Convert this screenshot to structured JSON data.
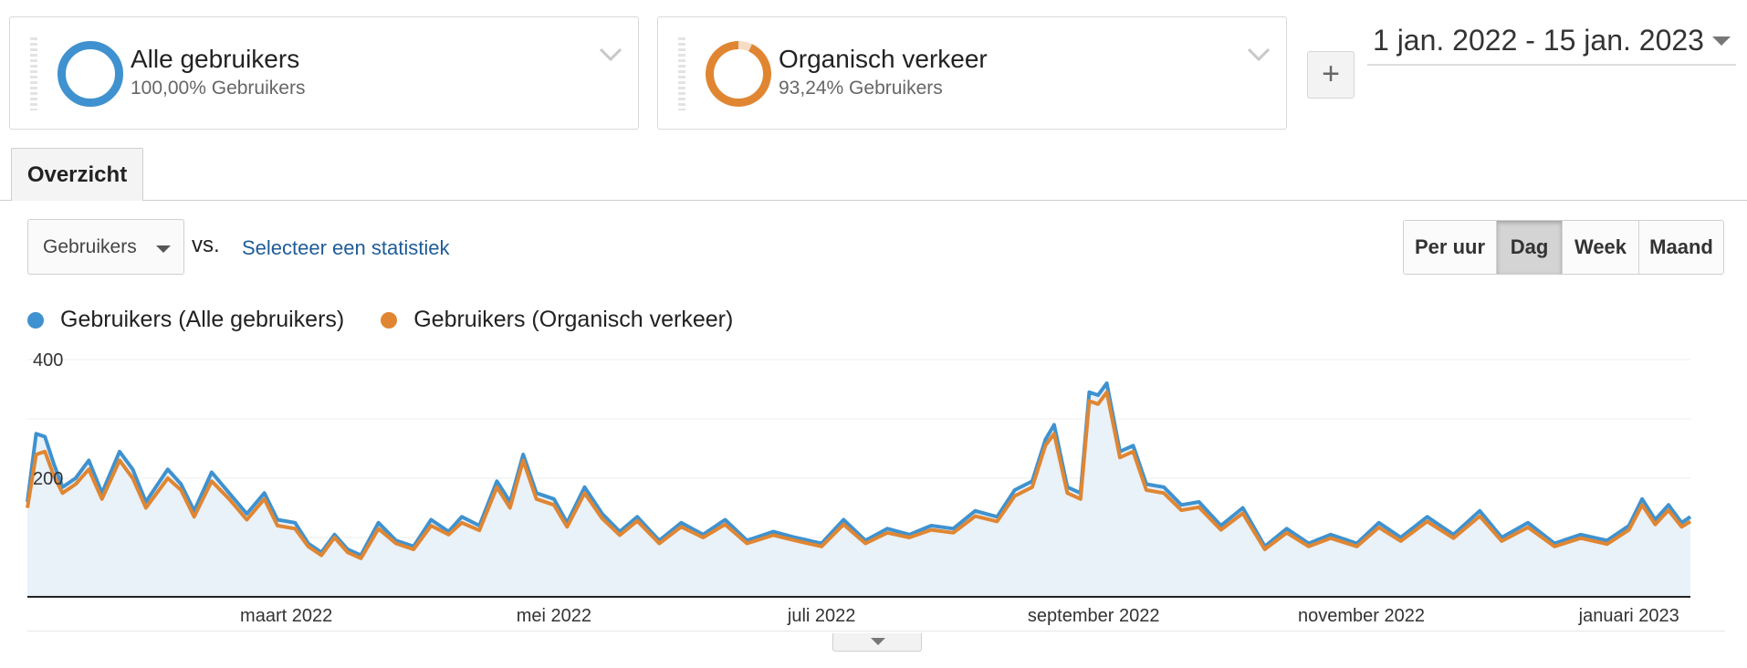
{
  "segments": [
    {
      "title": "Alle gebruikers",
      "subtitle": "100,00% Gebruikers",
      "color": "#3f92cf"
    },
    {
      "title": "Organisch verkeer",
      "subtitle": "93,24% Gebruikers",
      "color": "#e08632"
    }
  ],
  "add_segment_label": "+",
  "date_range": "1 jan. 2022 - 15 jan. 2023",
  "tabs": [
    {
      "label": "Overzicht"
    }
  ],
  "metric_selector": {
    "label": "Gebruikers",
    "vs_label": "vs.",
    "select_stat_label": "Selecteer een statistiek"
  },
  "period_buttons": [
    {
      "label": "Per uur",
      "active": false
    },
    {
      "label": "Dag",
      "active": true
    },
    {
      "label": "Week",
      "active": false
    },
    {
      "label": "Maand",
      "active": false
    }
  ],
  "chart_data": {
    "type": "line",
    "x_range": [
      "2022-01-01",
      "2023-01-15"
    ],
    "ylim": [
      0,
      400
    ],
    "yticks": [
      {
        "value": 400,
        "label": "400"
      },
      {
        "value": 200,
        "label": "200"
      }
    ],
    "xticks": [
      {
        "date": "2022-03-01",
        "label": "maart 2022"
      },
      {
        "date": "2022-05-01",
        "label": "mei 2022"
      },
      {
        "date": "2022-07-01",
        "label": "juli 2022"
      },
      {
        "date": "2022-09-01",
        "label": "september 2022"
      },
      {
        "date": "2022-11-01",
        "label": "november 2022"
      },
      {
        "date": "2023-01-01",
        "label": "januari 2023"
      }
    ],
    "grid": true,
    "legend_position": "top-left",
    "series": [
      {
        "name": "Gebruikers (Alle gebruikers)",
        "color": "#3f92cf",
        "fill": true,
        "points": [
          [
            "2022-01-01",
            160
          ],
          [
            "2022-01-03",
            275
          ],
          [
            "2022-01-05",
            270
          ],
          [
            "2022-01-07",
            225
          ],
          [
            "2022-01-09",
            185
          ],
          [
            "2022-01-12",
            200
          ],
          [
            "2022-01-15",
            230
          ],
          [
            "2022-01-18",
            175
          ],
          [
            "2022-01-22",
            245
          ],
          [
            "2022-01-25",
            215
          ],
          [
            "2022-01-28",
            160
          ],
          [
            "2022-02-02",
            215
          ],
          [
            "2022-02-05",
            190
          ],
          [
            "2022-02-08",
            145
          ],
          [
            "2022-02-12",
            210
          ],
          [
            "2022-02-16",
            175
          ],
          [
            "2022-02-20",
            140
          ],
          [
            "2022-02-24",
            175
          ],
          [
            "2022-02-27",
            130
          ],
          [
            "2022-03-03",
            125
          ],
          [
            "2022-03-06",
            90
          ],
          [
            "2022-03-09",
            75
          ],
          [
            "2022-03-12",
            105
          ],
          [
            "2022-03-15",
            80
          ],
          [
            "2022-03-18",
            70
          ],
          [
            "2022-03-22",
            125
          ],
          [
            "2022-03-26",
            95
          ],
          [
            "2022-03-30",
            85
          ],
          [
            "2022-04-03",
            130
          ],
          [
            "2022-04-07",
            110
          ],
          [
            "2022-04-10",
            135
          ],
          [
            "2022-04-14",
            120
          ],
          [
            "2022-04-18",
            195
          ],
          [
            "2022-04-21",
            160
          ],
          [
            "2022-04-24",
            240
          ],
          [
            "2022-04-27",
            175
          ],
          [
            "2022-05-01",
            165
          ],
          [
            "2022-05-04",
            125
          ],
          [
            "2022-05-08",
            185
          ],
          [
            "2022-05-12",
            140
          ],
          [
            "2022-05-16",
            110
          ],
          [
            "2022-05-20",
            135
          ],
          [
            "2022-05-25",
            95
          ],
          [
            "2022-05-30",
            125
          ],
          [
            "2022-06-04",
            105
          ],
          [
            "2022-06-09",
            130
          ],
          [
            "2022-06-14",
            95
          ],
          [
            "2022-06-20",
            110
          ],
          [
            "2022-06-25",
            100
          ],
          [
            "2022-07-01",
            90
          ],
          [
            "2022-07-06",
            130
          ],
          [
            "2022-07-11",
            95
          ],
          [
            "2022-07-16",
            115
          ],
          [
            "2022-07-21",
            105
          ],
          [
            "2022-07-26",
            120
          ],
          [
            "2022-07-31",
            115
          ],
          [
            "2022-08-05",
            145
          ],
          [
            "2022-08-10",
            135
          ],
          [
            "2022-08-14",
            180
          ],
          [
            "2022-08-18",
            195
          ],
          [
            "2022-08-21",
            265
          ],
          [
            "2022-08-23",
            290
          ],
          [
            "2022-08-26",
            185
          ],
          [
            "2022-08-29",
            175
          ],
          [
            "2022-08-31",
            345
          ],
          [
            "2022-09-02",
            340
          ],
          [
            "2022-09-04",
            360
          ],
          [
            "2022-09-07",
            245
          ],
          [
            "2022-09-10",
            255
          ],
          [
            "2022-09-13",
            190
          ],
          [
            "2022-09-17",
            185
          ],
          [
            "2022-09-21",
            155
          ],
          [
            "2022-09-25",
            160
          ],
          [
            "2022-09-30",
            120
          ],
          [
            "2022-10-05",
            150
          ],
          [
            "2022-10-10",
            85
          ],
          [
            "2022-10-15",
            115
          ],
          [
            "2022-10-20",
            90
          ],
          [
            "2022-10-25",
            105
          ],
          [
            "2022-10-31",
            90
          ],
          [
            "2022-11-05",
            125
          ],
          [
            "2022-11-10",
            100
          ],
          [
            "2022-11-16",
            135
          ],
          [
            "2022-11-22",
            105
          ],
          [
            "2022-11-28",
            145
          ],
          [
            "2022-12-03",
            100
          ],
          [
            "2022-12-09",
            125
          ],
          [
            "2022-12-15",
            90
          ],
          [
            "2022-12-21",
            105
          ],
          [
            "2022-12-27",
            95
          ],
          [
            "2023-01-01",
            120
          ],
          [
            "2023-01-04",
            165
          ],
          [
            "2023-01-07",
            130
          ],
          [
            "2023-01-10",
            155
          ],
          [
            "2023-01-13",
            125
          ],
          [
            "2023-01-15",
            135
          ]
        ]
      },
      {
        "name": "Gebruikers (Organisch verkeer)",
        "color": "#e08632",
        "fill": false,
        "points": [
          [
            "2022-01-01",
            150
          ],
          [
            "2022-01-03",
            240
          ],
          [
            "2022-01-05",
            245
          ],
          [
            "2022-01-07",
            205
          ],
          [
            "2022-01-09",
            175
          ],
          [
            "2022-01-12",
            190
          ],
          [
            "2022-01-15",
            215
          ],
          [
            "2022-01-18",
            165
          ],
          [
            "2022-01-22",
            230
          ],
          [
            "2022-01-25",
            200
          ],
          [
            "2022-01-28",
            150
          ],
          [
            "2022-02-02",
            200
          ],
          [
            "2022-02-05",
            180
          ],
          [
            "2022-02-08",
            135
          ],
          [
            "2022-02-12",
            195
          ],
          [
            "2022-02-16",
            165
          ],
          [
            "2022-02-20",
            130
          ],
          [
            "2022-02-24",
            165
          ],
          [
            "2022-02-27",
            120
          ],
          [
            "2022-03-03",
            115
          ],
          [
            "2022-03-06",
            85
          ],
          [
            "2022-03-09",
            70
          ],
          [
            "2022-03-12",
            100
          ],
          [
            "2022-03-15",
            75
          ],
          [
            "2022-03-18",
            65
          ],
          [
            "2022-03-22",
            115
          ],
          [
            "2022-03-26",
            90
          ],
          [
            "2022-03-30",
            80
          ],
          [
            "2022-04-03",
            120
          ],
          [
            "2022-04-07",
            105
          ],
          [
            "2022-04-10",
            125
          ],
          [
            "2022-04-14",
            112
          ],
          [
            "2022-04-18",
            185
          ],
          [
            "2022-04-21",
            150
          ],
          [
            "2022-04-24",
            230
          ],
          [
            "2022-04-27",
            165
          ],
          [
            "2022-05-01",
            155
          ],
          [
            "2022-05-04",
            118
          ],
          [
            "2022-05-08",
            175
          ],
          [
            "2022-05-12",
            132
          ],
          [
            "2022-05-16",
            104
          ],
          [
            "2022-05-20",
            128
          ],
          [
            "2022-05-25",
            90
          ],
          [
            "2022-05-30",
            118
          ],
          [
            "2022-06-04",
            100
          ],
          [
            "2022-06-09",
            122
          ],
          [
            "2022-06-14",
            90
          ],
          [
            "2022-06-20",
            104
          ],
          [
            "2022-06-25",
            95
          ],
          [
            "2022-07-01",
            85
          ],
          [
            "2022-07-06",
            122
          ],
          [
            "2022-07-11",
            90
          ],
          [
            "2022-07-16",
            108
          ],
          [
            "2022-07-21",
            100
          ],
          [
            "2022-07-26",
            113
          ],
          [
            "2022-07-31",
            108
          ],
          [
            "2022-08-05",
            136
          ],
          [
            "2022-08-10",
            127
          ],
          [
            "2022-08-14",
            170
          ],
          [
            "2022-08-18",
            185
          ],
          [
            "2022-08-21",
            255
          ],
          [
            "2022-08-23",
            275
          ],
          [
            "2022-08-26",
            175
          ],
          [
            "2022-08-29",
            165
          ],
          [
            "2022-08-31",
            330
          ],
          [
            "2022-09-02",
            325
          ],
          [
            "2022-09-04",
            345
          ],
          [
            "2022-09-07",
            235
          ],
          [
            "2022-09-10",
            245
          ],
          [
            "2022-09-13",
            180
          ],
          [
            "2022-09-17",
            175
          ],
          [
            "2022-09-21",
            146
          ],
          [
            "2022-09-25",
            151
          ],
          [
            "2022-09-30",
            113
          ],
          [
            "2022-10-05",
            141
          ],
          [
            "2022-10-10",
            80
          ],
          [
            "2022-10-15",
            108
          ],
          [
            "2022-10-20",
            85
          ],
          [
            "2022-10-25",
            99
          ],
          [
            "2022-10-31",
            85
          ],
          [
            "2022-11-05",
            117
          ],
          [
            "2022-11-10",
            94
          ],
          [
            "2022-11-16",
            127
          ],
          [
            "2022-11-22",
            99
          ],
          [
            "2022-11-28",
            136
          ],
          [
            "2022-12-03",
            94
          ],
          [
            "2022-12-09",
            117
          ],
          [
            "2022-12-15",
            85
          ],
          [
            "2022-12-21",
            99
          ],
          [
            "2022-12-27",
            89
          ],
          [
            "2023-01-01",
            113
          ],
          [
            "2023-01-04",
            155
          ],
          [
            "2023-01-07",
            122
          ],
          [
            "2023-01-10",
            146
          ],
          [
            "2023-01-13",
            118
          ],
          [
            "2023-01-15",
            127
          ]
        ]
      }
    ]
  }
}
